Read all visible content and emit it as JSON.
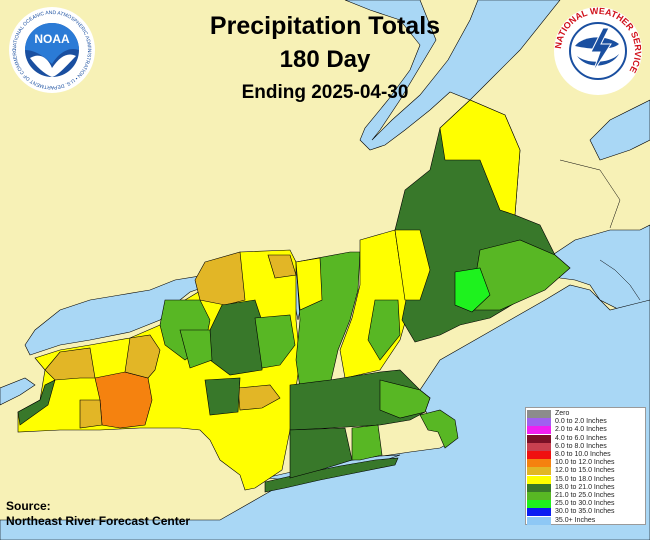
{
  "title": {
    "line1": "Precipitation Totals",
    "line2": "180 Day",
    "line3": "Ending 2025-04-30"
  },
  "source": {
    "line1": "Source:",
    "line2": "Northeast River Forecast Center"
  },
  "logos": {
    "noaa": {
      "text": "NOAA",
      "ring_text": "NATIONAL OCEANIC AND ATMOSPHERIC ADMINISTRATION • U.S. DEPARTMENT OF COMMERCE •",
      "color": "#1a4fa0"
    },
    "nws": {
      "ring_text": "NATIONAL WEATHER SERVICE",
      "color": "#d0101a"
    }
  },
  "colors": {
    "land_outside": "#f7f1b6",
    "water": "#a9d7f5",
    "boundary": "#000000"
  },
  "legend": [
    {
      "label": "Zero",
      "color": "#8c8c8c"
    },
    {
      "label": "0.0 to 2.0 Inches",
      "color": "#a061f0"
    },
    {
      "label": "2.0 to 4.0 Inches",
      "color": "#f020f0"
    },
    {
      "label": "4.0 to 6.0 Inches",
      "color": "#7a1026"
    },
    {
      "label": "6.0 to 8.0 Inches",
      "color": "#c84050"
    },
    {
      "label": "8.0 to 10.0 Inches",
      "color": "#f01010"
    },
    {
      "label": "10.0 to 12.0 Inches",
      "color": "#f5820f"
    },
    {
      "label": "12.0 to 15.0 Inches",
      "color": "#e2b626"
    },
    {
      "label": "15.0 to 18.0 Inches",
      "color": "#ffff00"
    },
    {
      "label": "18.0 to 21.0 Inches",
      "color": "#38782a"
    },
    {
      "label": "21.0 to 25.0 Inches",
      "color": "#58b724"
    },
    {
      "label": "25.0 to 30.0 Inches",
      "color": "#1ef21e"
    },
    {
      "label": "30.0 to 35.0 Inches",
      "color": "#0a1cf2"
    },
    {
      "label": "35.0+ Inches",
      "color": "#8ec8f5"
    }
  ]
}
